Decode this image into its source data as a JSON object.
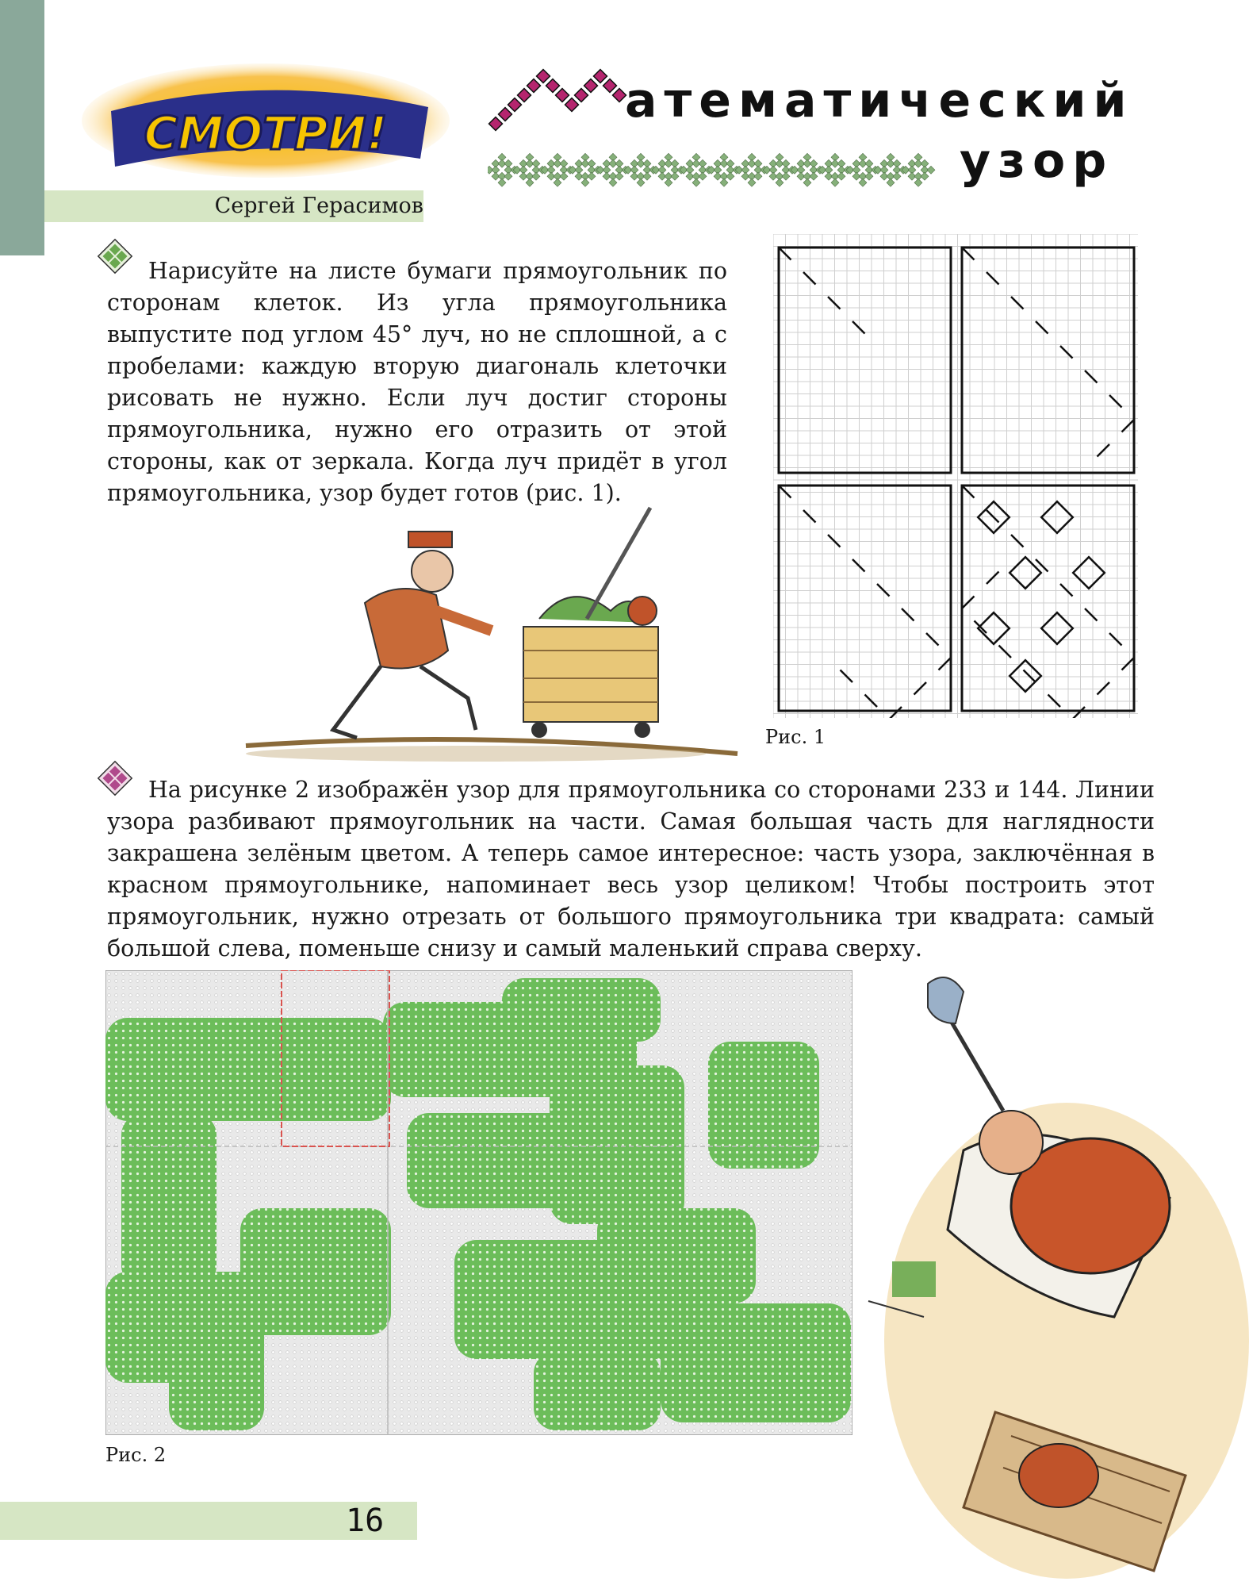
{
  "header": {
    "logo_text": "СМОТРИ!",
    "author": "Сергей Герасимов",
    "title_line1": "атематический",
    "title_line2": "узор"
  },
  "section1": {
    "text": "Нарисуйте на листе бумаги прямоугольник по сторонам клеток. Из угла прямоугольника выпустите под углом 45° луч, но не сплошной, а с пробелами: каждую вторую диагональ клеточки рисовать не нужно. Если луч достиг стороны прямоугольника, нужно его отразить от этой стороны, как от зеркала. Когда луч придёт в угол прямоугольника, узор будет готов (рис. 1).",
    "bullet_color": "#6aa84f"
  },
  "figure1": {
    "caption": "Рис. 1"
  },
  "section2": {
    "text": "На рисунке 2 изображён узор для прямоугольника со сторонами 233 и 144. Линии узора разбивают прямоугольник на части. Самая большая часть для наглядности закрашена зелёным цветом. А теперь самое интересное: часть узора, заключённая в красном прямоугольнике, напоминает весь узор целиком! Чтобы построить этот прямоугольник, нужно отрезать от большого прямоугольника три квадрата: самый большой слева, поменьше снизу и самый маленький справа сверху.",
    "bullet_color": "#b04a8c"
  },
  "figure2": {
    "caption": "Рис. 2"
  },
  "footer": {
    "page_number": "16"
  },
  "colors": {
    "green": "#6cbd5a",
    "light_green": "#d6e6c4",
    "sidebar": "#8aa89a",
    "magenta": "#b5256e",
    "pattern_green": "#86b07a"
  }
}
